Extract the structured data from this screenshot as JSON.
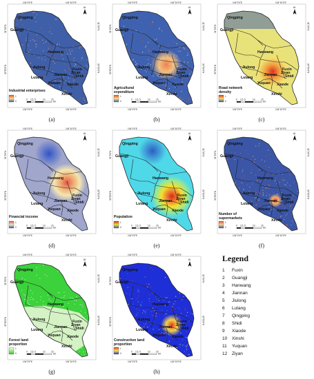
{
  "coords": {
    "top": [
      "104°0'0\"E",
      "104°10'0\"E"
    ],
    "bottom": [
      "104°0'0\"E",
      "104°10'0\"E"
    ],
    "left": [
      "31°0'0\"N",
      "30°50'0\"N"
    ],
    "right": [
      "31°0'0\"N",
      "30°50'0\"N"
    ]
  },
  "scale": {
    "ticks": [
      "0",
      "2.5",
      "5",
      "10",
      "15"
    ],
    "unit": "km"
  },
  "north": "N",
  "region_labels": [
    "Qingping",
    "Guangji",
    "Hanwang",
    "Jiulong",
    "Fuxin",
    "Jiannan",
    "Lutang",
    "Shidi",
    "Ziyan",
    "Yuquan",
    "Xiaode",
    "Xinshi"
  ],
  "panels": [
    {
      "caption": "(a)",
      "title": [
        "Industrial enterprises"
      ],
      "legend_hi": "1",
      "legend_lo": "0",
      "style": "blue-speckle"
    },
    {
      "caption": "(b)",
      "title": [
        "Agricultural",
        "expenditure"
      ],
      "legend_hi": "1",
      "legend_lo": "0",
      "style": "blue-red-speckle"
    },
    {
      "caption": "(c)",
      "title": [
        "Road network",
        "density"
      ],
      "legend_hi": "1",
      "legend_lo": "0",
      "style": "yellow-heat"
    },
    {
      "caption": "(d)",
      "title": [
        "Financial income"
      ],
      "legend_hi": "1",
      "legend_lo": "0",
      "style": "purple-heat"
    },
    {
      "caption": "(e)",
      "title": [
        "Population"
      ],
      "legend_hi": "1",
      "legend_lo": "0",
      "style": "cyan-heat"
    },
    {
      "caption": "(f)",
      "title": [
        "Number of",
        "supermarkets"
      ],
      "legend_hi": "1",
      "legend_lo": "0",
      "style": "blue-speckle2"
    },
    {
      "caption": "(g)",
      "title": [
        "Forest land",
        "proportion"
      ],
      "legend_hi": "1",
      "legend_lo": "0",
      "style": "green"
    },
    {
      "caption": "(h)",
      "title": [
        "Construction land",
        "proportion"
      ],
      "legend_hi": "1",
      "legend_lo": "0",
      "style": "blue-construction"
    }
  ],
  "legend": {
    "title": "Legend",
    "items": [
      {
        "num": "1",
        "name": "Fuxin"
      },
      {
        "num": "2",
        "name": "Guangji"
      },
      {
        "num": "3",
        "name": "Hanwang"
      },
      {
        "num": "4",
        "name": "Jiannan"
      },
      {
        "num": "5",
        "name": "Jiulong"
      },
      {
        "num": "6",
        "name": "Lutang"
      },
      {
        "num": "7",
        "name": "Qingping"
      },
      {
        "num": "8",
        "name": "Shidi"
      },
      {
        "num": "9",
        "name": "Xiaode"
      },
      {
        "num": "10",
        "name": "Xinshi"
      },
      {
        "num": "11",
        "name": "Yuquan"
      },
      {
        "num": "12",
        "name": "Ziyan"
      }
    ]
  }
}
